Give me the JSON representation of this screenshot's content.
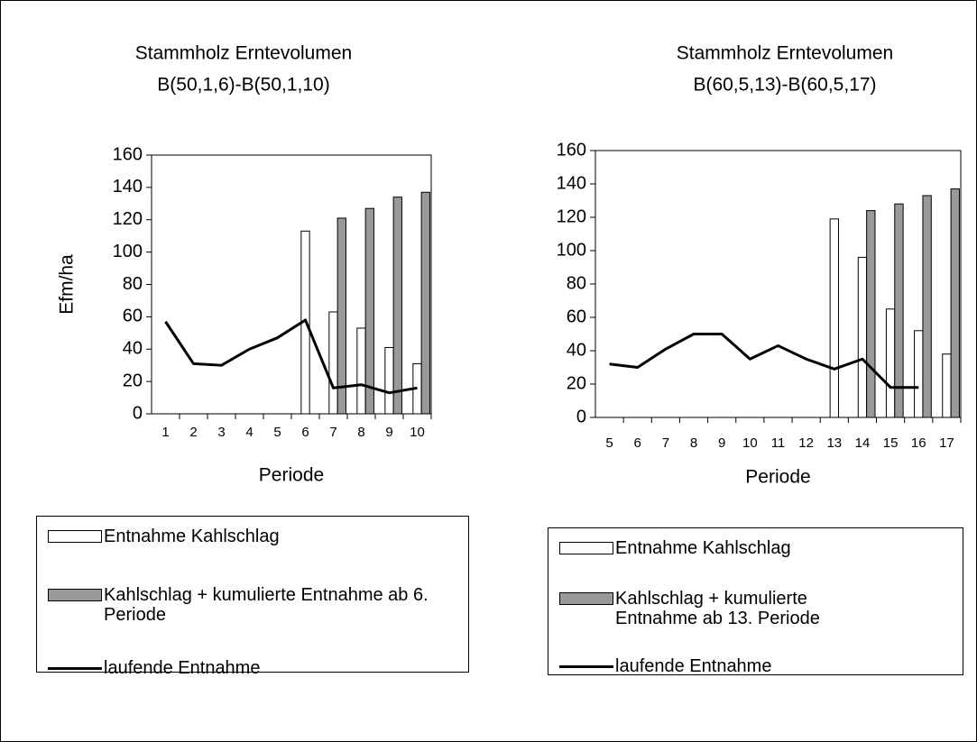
{
  "chart_data": [
    {
      "type": "bar",
      "title": "Stammholz Erntevolumen",
      "subtitle": "B(50,1,6)-B(50,1,10)",
      "y_label": "Efm/ha",
      "x_label": "Periode",
      "categories": [
        "1",
        "2",
        "3",
        "4",
        "5",
        "6",
        "7",
        "8",
        "9",
        "10"
      ],
      "ylim": [
        0,
        160
      ],
      "yticks": [
        0,
        20,
        40,
        60,
        80,
        100,
        120,
        140,
        160
      ],
      "series": [
        {
          "name": "Entnahme Kahlschlag",
          "type": "bar",
          "color": "#ffffff",
          "values": [
            null,
            null,
            null,
            null,
            null,
            113,
            63,
            53,
            41,
            31
          ]
        },
        {
          "name": "Kahlschlag + kumulierte Entnahme ab 6. Periode",
          "type": "bar",
          "color": "#999999",
          "values": [
            null,
            null,
            null,
            null,
            null,
            null,
            121,
            127,
            134,
            137
          ]
        },
        {
          "name": "laufende Entnahme",
          "type": "line",
          "color": "#000000",
          "values": [
            57,
            31,
            30,
            40,
            47,
            58,
            16,
            18,
            13,
            16
          ]
        }
      ]
    },
    {
      "type": "bar",
      "title": "Stammholz Erntevolumen",
      "subtitle": "B(60,5,13)-B(60,5,17)",
      "x_label": "Periode",
      "categories": [
        "5",
        "6",
        "7",
        "8",
        "9",
        "10",
        "11",
        "12",
        "13",
        "14",
        "15",
        "16",
        "17"
      ],
      "ylim": [
        0,
        160
      ],
      "yticks": [
        0,
        20,
        40,
        60,
        80,
        100,
        120,
        140,
        160
      ],
      "series": [
        {
          "name": "Entnahme Kahlschlag",
          "type": "bar",
          "color": "#ffffff",
          "values": [
            null,
            null,
            null,
            null,
            null,
            null,
            null,
            null,
            119,
            96,
            65,
            52,
            38
          ]
        },
        {
          "name": "Kahlschlag + kumulierte Entnahme ab 13. Periode",
          "type": "bar",
          "color": "#999999",
          "values": [
            null,
            null,
            null,
            null,
            null,
            null,
            null,
            null,
            null,
            124,
            128,
            133,
            137
          ]
        },
        {
          "name": "laufende Entnahme",
          "type": "line",
          "color": "#000000",
          "values": [
            32,
            30,
            41,
            50,
            50,
            35,
            43,
            35,
            29,
            35,
            18,
            18,
            null
          ]
        }
      ]
    }
  ]
}
